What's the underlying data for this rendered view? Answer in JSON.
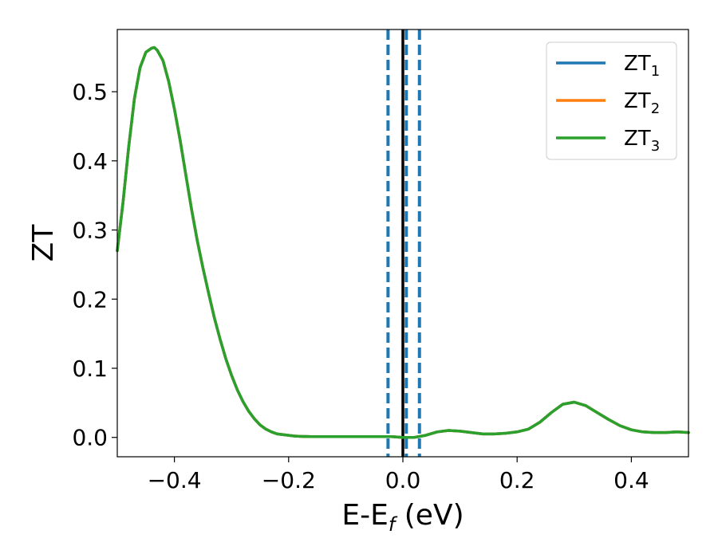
{
  "chart_data": {
    "type": "line",
    "title": "",
    "xlabel": {
      "main": "E-E",
      "sub": "f",
      "suffix": " (eV)"
    },
    "ylabel": "ZT",
    "xlim": [
      -0.5,
      0.5
    ],
    "ylim": [
      -0.028,
      0.59
    ],
    "xticks": [
      -0.4,
      -0.2,
      0.0,
      0.2,
      0.4
    ],
    "xtick_labels": [
      "−0.4",
      "−0.2",
      "0.0",
      "0.2",
      "0.4"
    ],
    "yticks": [
      0.0,
      0.1,
      0.2,
      0.3,
      0.4,
      0.5
    ],
    "ytick_labels": [
      "0.0",
      "0.1",
      "0.2",
      "0.3",
      "0.4",
      "0.5"
    ],
    "grid": false,
    "legend_position": "top-right",
    "series": [
      {
        "name": "ZT",
        "sub": "1",
        "color": "#1f77b4"
      },
      {
        "name": "ZT",
        "sub": "2",
        "color": "#ff7f0e"
      },
      {
        "name": "ZT",
        "sub": "3",
        "color": "#2ca02c"
      }
    ],
    "curve": {
      "x": [
        -0.5,
        -0.49,
        -0.48,
        -0.47,
        -0.46,
        -0.45,
        -0.44,
        -0.435,
        -0.43,
        -0.42,
        -0.41,
        -0.4,
        -0.39,
        -0.38,
        -0.37,
        -0.36,
        -0.35,
        -0.34,
        -0.33,
        -0.32,
        -0.31,
        -0.3,
        -0.29,
        -0.28,
        -0.27,
        -0.26,
        -0.25,
        -0.24,
        -0.23,
        -0.22,
        -0.21,
        -0.2,
        -0.19,
        -0.18,
        -0.16,
        -0.14,
        -0.12,
        -0.1,
        -0.08,
        -0.06,
        -0.04,
        -0.02,
        0.0,
        0.02,
        0.04,
        0.06,
        0.08,
        0.1,
        0.12,
        0.14,
        0.16,
        0.18,
        0.2,
        0.22,
        0.24,
        0.26,
        0.28,
        0.3,
        0.32,
        0.34,
        0.36,
        0.38,
        0.4,
        0.42,
        0.44,
        0.46,
        0.48,
        0.5
      ],
      "y": [
        0.27,
        0.34,
        0.42,
        0.49,
        0.535,
        0.557,
        0.563,
        0.564,
        0.56,
        0.545,
        0.515,
        0.475,
        0.43,
        0.38,
        0.33,
        0.285,
        0.245,
        0.208,
        0.173,
        0.142,
        0.114,
        0.09,
        0.069,
        0.052,
        0.038,
        0.027,
        0.018,
        0.012,
        0.008,
        0.005,
        0.004,
        0.003,
        0.002,
        0.0015,
        0.001,
        0.001,
        0.001,
        0.001,
        0.001,
        0.001,
        0.001,
        0.001,
        0.0,
        0.0,
        0.003,
        0.008,
        0.01,
        0.009,
        0.007,
        0.005,
        0.005,
        0.006,
        0.008,
        0.012,
        0.022,
        0.036,
        0.048,
        0.051,
        0.046,
        0.036,
        0.026,
        0.017,
        0.011,
        0.008,
        0.007,
        0.007,
        0.008,
        0.007
      ]
    },
    "vlines": [
      {
        "x": 0.0,
        "style": "solid",
        "color": "#000000"
      },
      {
        "x": -0.026,
        "style": "dashed",
        "color": "#1f77b4"
      },
      {
        "x": 0.006,
        "style": "dashed",
        "color": "#1f77b4"
      },
      {
        "x": 0.029,
        "style": "dashed",
        "color": "#1f77b4"
      }
    ]
  }
}
